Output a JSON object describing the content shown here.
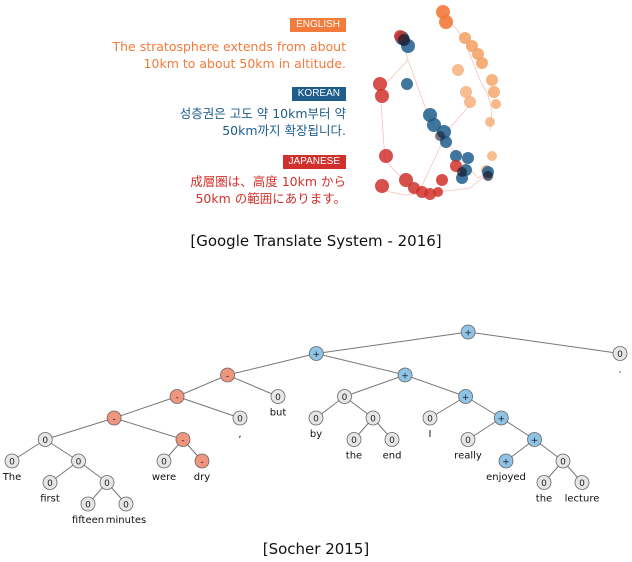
{
  "top": {
    "languages": [
      {
        "badge": "ENGLISH",
        "color": "#f27a3a",
        "lines": [
          "The stratosphere extends from about",
          "10km to about 50km in altitude."
        ]
      },
      {
        "badge": "KOREAN",
        "color": "#1e5d8c",
        "lines": [
          "성층권은 고도 약 10km부터 약",
          "50km까지 확장됩니다."
        ]
      },
      {
        "badge": "JAPANESE",
        "color": "#d0312d",
        "lines": [
          "成層圏は、高度 10km から",
          "50km の範囲にあります。"
        ]
      }
    ],
    "caption": "[Google Translate System - 2016]"
  },
  "bottom": {
    "caption": "[Socher 2015]",
    "node_colors": {
      "pos": "#8fc4e6",
      "neg": "#f0957e",
      "neu": "#e6e6e6"
    },
    "tree": {
      "s": "+",
      "c": [
        {
          "s": "+",
          "c": [
            {
              "s": "-",
              "c": [
                {
                  "s": "-",
                  "c": [
                    {
                      "s": "-",
                      "c": [
                        {
                          "s": "0",
                          "c": [
                            {
                              "s": "0",
                              "w": "The"
                            },
                            {
                              "s": "0",
                              "c": [
                                {
                                  "s": "0",
                                  "w": "first"
                                },
                                {
                                  "s": "0",
                                  "c": [
                                    {
                                      "s": "0",
                                      "w": "fifteen"
                                    },
                                    {
                                      "s": "0",
                                      "w": "minutes"
                                    }
                                  ]
                                }
                              ]
                            }
                          ]
                        },
                        {
                          "s": "-",
                          "c": [
                            {
                              "s": "0",
                              "w": "were"
                            },
                            {
                              "s": "-",
                              "w": "dry"
                            }
                          ]
                        }
                      ]
                    },
                    {
                      "s": "0",
                      "w": ","
                    }
                  ]
                },
                {
                  "s": "0",
                  "w": "but"
                }
              ]
            },
            {
              "s": "+",
              "c": [
                {
                  "s": "0",
                  "c": [
                    {
                      "s": "0",
                      "w": "by"
                    },
                    {
                      "s": "0",
                      "c": [
                        {
                          "s": "0",
                          "w": "the"
                        },
                        {
                          "s": "0",
                          "w": "end"
                        }
                      ]
                    }
                  ]
                },
                {
                  "s": "+",
                  "c": [
                    {
                      "s": "0",
                      "w": "I"
                    },
                    {
                      "s": "+",
                      "c": [
                        {
                          "s": "0",
                          "w": "really"
                        },
                        {
                          "s": "+",
                          "c": [
                            {
                              "s": "+",
                              "w": "enjoyed"
                            },
                            {
                              "s": "0",
                              "c": [
                                {
                                  "s": "0",
                                  "w": "the"
                                },
                                {
                                  "s": "0",
                                  "w": "lecture"
                                }
                              ]
                            }
                          ]
                        }
                      ]
                    }
                  ]
                }
              ]
            }
          ]
        },
        {
          "s": "0",
          "w": "."
        }
      ]
    }
  }
}
